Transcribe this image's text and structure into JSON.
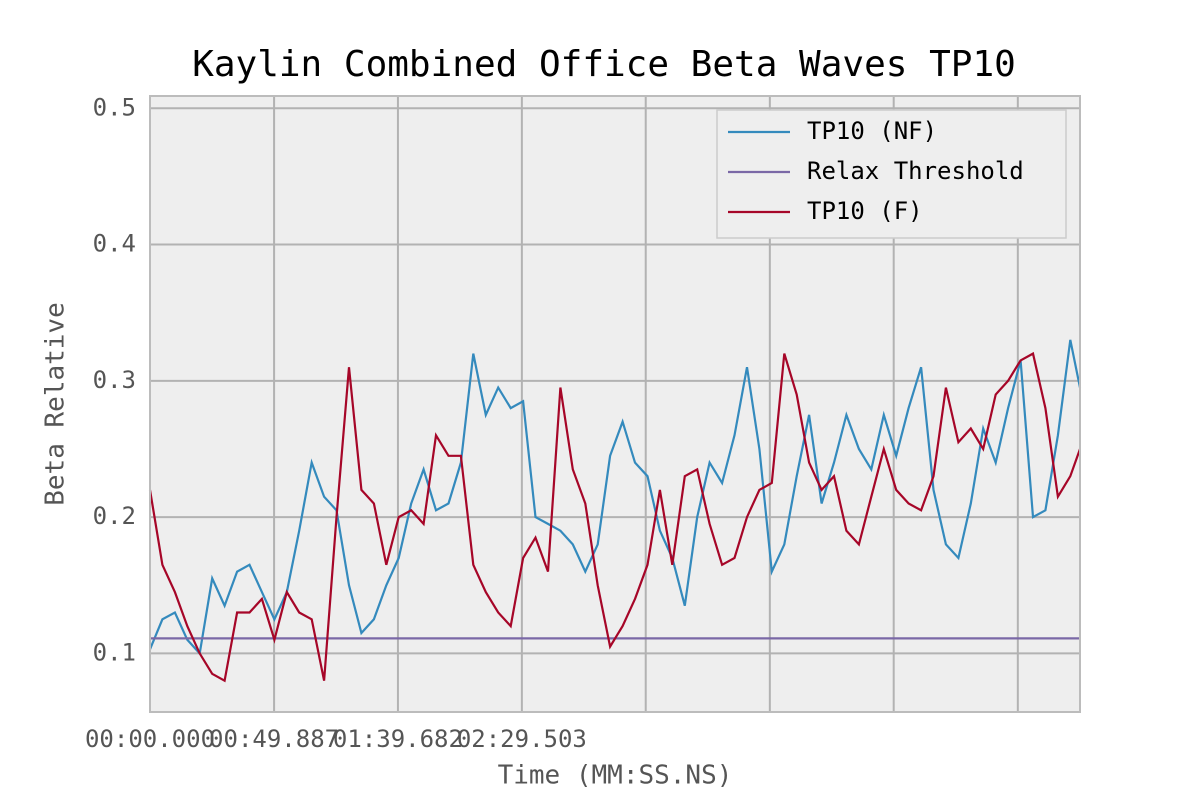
{
  "chart_data": {
    "type": "line",
    "title": "Kaylin Combined Office Beta Waves TP10",
    "xlabel": "Time (MM:SS.NS)",
    "ylabel": "Beta Relative",
    "xlim": [
      0,
      373.9
    ],
    "ylim": [
      0.057,
      0.509
    ],
    "xticks": [
      {
        "value": 0,
        "label": "00:00.000"
      },
      {
        "value": 49.887,
        "label": "00:49.887"
      },
      {
        "value": 99.682,
        "label": "01:39.682"
      },
      {
        "value": 149.503,
        "label": "02:29.503"
      },
      {
        "value": 199.3,
        "label": null
      },
      {
        "value": 249.2,
        "label": null
      },
      {
        "value": 299.0,
        "label": null
      },
      {
        "value": 348.9,
        "label": null
      }
    ],
    "yticks": [
      0.1,
      0.2,
      0.3,
      0.4,
      0.5
    ],
    "grid": true,
    "legend": "upper right",
    "series": [
      {
        "name": "TP10 (NF)",
        "color": "#348abd",
        "x": [
          0,
          5,
          10,
          15,
          20,
          25,
          30,
          35,
          40,
          45,
          50,
          55,
          60,
          65,
          70,
          75,
          80,
          85,
          90,
          95,
          100,
          105,
          110,
          115,
          120,
          125,
          130,
          135,
          140,
          145,
          150,
          155,
          160,
          165,
          170,
          175,
          180,
          185,
          190,
          195,
          200,
          205,
          210,
          215,
          220,
          225,
          230,
          235,
          240,
          245,
          250,
          255,
          260,
          265,
          270,
          275,
          280,
          285,
          290,
          295,
          300,
          305,
          310,
          315,
          320,
          325,
          330,
          335,
          340,
          345,
          350,
          355,
          360,
          365,
          370,
          373.9
        ],
        "values": [
          0.103,
          0.125,
          0.13,
          0.11,
          0.1,
          0.155,
          0.135,
          0.16,
          0.165,
          0.145,
          0.125,
          0.145,
          0.19,
          0.24,
          0.215,
          0.205,
          0.15,
          0.115,
          0.125,
          0.15,
          0.17,
          0.21,
          0.235,
          0.205,
          0.21,
          0.24,
          0.32,
          0.275,
          0.295,
          0.28,
          0.285,
          0.2,
          0.195,
          0.19,
          0.18,
          0.16,
          0.18,
          0.245,
          0.27,
          0.24,
          0.23,
          0.19,
          0.17,
          0.135,
          0.2,
          0.24,
          0.225,
          0.26,
          0.31,
          0.25,
          0.16,
          0.18,
          0.23,
          0.275,
          0.21,
          0.24,
          0.275,
          0.25,
          0.235,
          0.275,
          0.245,
          0.28,
          0.31,
          0.22,
          0.18,
          0.17,
          0.21,
          0.265,
          0.24,
          0.28,
          0.315,
          0.2,
          0.205,
          0.26,
          0.33,
          0.295
        ]
      },
      {
        "name": "Relax Threshold",
        "color": "#7a68a6",
        "x": [
          0,
          373.9
        ],
        "values": [
          0.111,
          0.111
        ]
      },
      {
        "name": "TP10 (F)",
        "color": "#a60628",
        "x": [
          0,
          5,
          10,
          15,
          20,
          25,
          30,
          35,
          40,
          45,
          50,
          55,
          60,
          65,
          70,
          75,
          80,
          85,
          90,
          95,
          100,
          105,
          110,
          115,
          120,
          125,
          130,
          135,
          140,
          145,
          150,
          155,
          160,
          165,
          170,
          175,
          180,
          185,
          190,
          195,
          200,
          205,
          210,
          215,
          220,
          225,
          230,
          235,
          240,
          245,
          250,
          255,
          260,
          265,
          270,
          275,
          280,
          285,
          290,
          295,
          300,
          305,
          310,
          315,
          320,
          325,
          330,
          335,
          340,
          345,
          350,
          355,
          360,
          365,
          370,
          373.9
        ],
        "values": [
          0.22,
          0.165,
          0.145,
          0.12,
          0.1,
          0.085,
          0.08,
          0.13,
          0.13,
          0.14,
          0.11,
          0.145,
          0.13,
          0.125,
          0.08,
          0.2,
          0.31,
          0.22,
          0.21,
          0.165,
          0.2,
          0.205,
          0.195,
          0.26,
          0.245,
          0.245,
          0.165,
          0.145,
          0.13,
          0.12,
          0.17,
          0.185,
          0.16,
          0.295,
          0.235,
          0.21,
          0.15,
          0.105,
          0.12,
          0.14,
          0.165,
          0.22,
          0.165,
          0.23,
          0.235,
          0.195,
          0.165,
          0.17,
          0.2,
          0.22,
          0.225,
          0.32,
          0.29,
          0.24,
          0.22,
          0.23,
          0.19,
          0.18,
          0.215,
          0.25,
          0.22,
          0.21,
          0.205,
          0.23,
          0.295,
          0.255,
          0.265,
          0.25,
          0.29,
          0.3,
          0.315,
          0.32,
          0.28,
          0.215,
          0.23,
          0.25
        ]
      }
    ]
  }
}
